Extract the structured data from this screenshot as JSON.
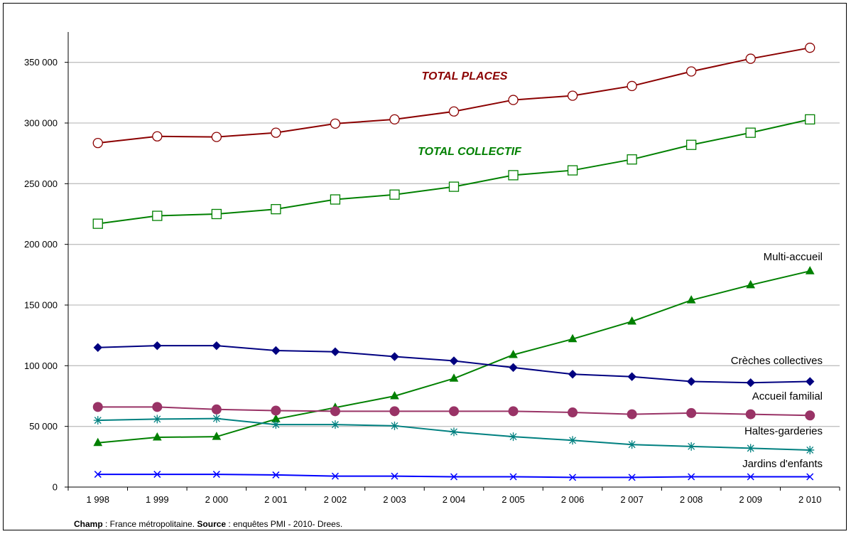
{
  "chart_data": {
    "type": "line",
    "categories": [
      "1 998",
      "1 999",
      "2 000",
      "2 001",
      "2 002",
      "2 003",
      "2 004",
      "2 005",
      "2 006",
      "2 007",
      "2 008",
      "2 009",
      "2 010"
    ],
    "ylim": [
      0,
      375000
    ],
    "yticks": [
      0,
      50000,
      100000,
      150000,
      200000,
      250000,
      300000,
      350000
    ],
    "ytick_labels": [
      "0",
      "50 000",
      "100 000",
      "150 000",
      "200 000",
      "250 000",
      "300 000",
      "350 000"
    ],
    "grid": true,
    "series": [
      {
        "name": "TOTAL PLACES",
        "color": "#8B0000",
        "marker": "circle-open",
        "values": [
          283500,
          289000,
          288500,
          292000,
          299500,
          303000,
          309500,
          319000,
          322500,
          330500,
          342500,
          353000,
          362000
        ]
      },
      {
        "name": "TOTAL COLLECTIF",
        "color": "#008000",
        "marker": "square-open",
        "values": [
          217000,
          223500,
          225000,
          229000,
          237000,
          241000,
          247500,
          257000,
          261000,
          270000,
          282000,
          292000,
          303000
        ]
      },
      {
        "name": "Multi-accueil",
        "color": "#008000",
        "marker": "triangle",
        "values": [
          36500,
          41000,
          41500,
          56000,
          65500,
          75000,
          89500,
          109000,
          122000,
          136500,
          154000,
          166500,
          178000
        ]
      },
      {
        "name": "Crèches collectives",
        "color": "#000080",
        "marker": "diamond",
        "values": [
          115000,
          116500,
          116500,
          112500,
          111500,
          107500,
          104000,
          98500,
          93000,
          91000,
          87000,
          86000,
          87000
        ]
      },
      {
        "name": "Accueil familial",
        "color": "#993366",
        "marker": "circle",
        "values": [
          66000,
          66000,
          64000,
          63000,
          62500,
          62500,
          62500,
          62500,
          61500,
          60000,
          61000,
          60000,
          59000
        ]
      },
      {
        "name": "Haltes-garderies",
        "color": "#008080",
        "marker": "asterisk",
        "values": [
          55000,
          56000,
          56500,
          51500,
          51500,
          50500,
          45500,
          41500,
          38500,
          35000,
          33500,
          32000,
          30500
        ]
      },
      {
        "name": "Jardins d'enfants",
        "color": "#0000FF",
        "marker": "x",
        "values": [
          10500,
          10500,
          10500,
          10000,
          9000,
          9000,
          8500,
          8500,
          8000,
          8000,
          8500,
          8500,
          8500
        ]
      }
    ],
    "annotations": {
      "total_places": "TOTAL PLACES",
      "total_collectif": "TOTAL COLLECTIF",
      "multi_accueil": "Multi-accueil",
      "creches": "Crèches collectives",
      "accueil_familial": "Accueil familial",
      "haltes": "Haltes-garderies",
      "jardins": "Jardins d'enfants"
    }
  },
  "footnote": {
    "champ_label": "Champ",
    "champ_text": " : France métropolitaine. ",
    "source_label": "Source",
    "source_text": " : enquêtes  PMI - 2010- Drees."
  }
}
